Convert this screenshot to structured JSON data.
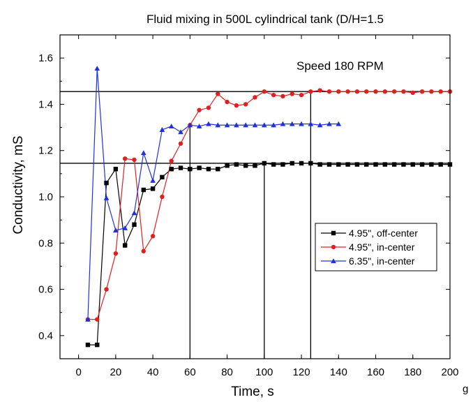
{
  "chart_data": {
    "type": "line",
    "title": "Fluid mixing in 500L cylindrical tank (D/H=1.5",
    "xlabel": "Time, s",
    "ylabel": "Conductivity, mS",
    "xlim": [
      -10,
      200
    ],
    "ylim": [
      0.3,
      1.7
    ],
    "x_ticks": [
      0,
      20,
      40,
      60,
      80,
      100,
      120,
      140,
      160,
      180,
      200
    ],
    "y_ticks": [
      0.4,
      0.6,
      0.8,
      1.0,
      1.2,
      1.4,
      1.6
    ],
    "x_tick_labels": [
      "0",
      "20",
      "40",
      "60",
      "80",
      "100",
      "120",
      "140",
      "160",
      "180",
      "200"
    ],
    "y_tick_labels": [
      "0.4",
      "0.6",
      "0.8",
      "1.0",
      "1.2",
      "1.4",
      "1.6"
    ],
    "grid": false,
    "legend_position": "center-right",
    "annotation": "Speed 180 RPM",
    "reference_lines": {
      "horizontal": [
        1.455,
        1.145
      ],
      "vertical": [
        {
          "x": 60,
          "from": 0.3,
          "to": 1.31
        },
        {
          "x": 100,
          "from": 0.3,
          "to": 1.145
        },
        {
          "x": 125,
          "from": 0.3,
          "to": 1.455
        }
      ]
    },
    "series": [
      {
        "name": "4.95\", off-center",
        "color": "#000000",
        "marker": "square",
        "x": [
          5,
          10,
          15,
          20,
          25,
          30,
          35,
          40,
          45,
          50,
          55,
          60,
          65,
          70,
          75,
          80,
          85,
          90,
          95,
          100,
          105,
          110,
          115,
          120,
          125,
          130,
          135,
          140,
          145,
          150,
          155,
          160,
          165,
          170,
          175,
          180,
          185,
          190,
          195,
          200
        ],
        "values": [
          0.36,
          0.36,
          1.06,
          1.12,
          0.79,
          0.88,
          1.03,
          1.035,
          1.085,
          1.12,
          1.125,
          1.12,
          1.125,
          1.12,
          1.12,
          1.135,
          1.14,
          1.135,
          1.135,
          1.145,
          1.14,
          1.14,
          1.145,
          1.145,
          1.145,
          1.14,
          1.14,
          1.14,
          1.14,
          1.14,
          1.14,
          1.14,
          1.14,
          1.14,
          1.14,
          1.14,
          1.14,
          1.14,
          1.14,
          1.14
        ]
      },
      {
        "name": "4.95\", in-center",
        "color": "#e02020",
        "marker": "circle",
        "x": [
          5,
          10,
          15,
          20,
          25,
          30,
          35,
          40,
          45,
          50,
          55,
          60,
          65,
          70,
          75,
          80,
          85,
          90,
          95,
          100,
          105,
          110,
          115,
          120,
          125,
          130,
          135,
          140,
          145,
          150,
          155,
          160,
          165,
          170,
          175,
          180,
          185,
          190,
          195,
          200
        ],
        "values": [
          0.47,
          0.47,
          0.6,
          0.755,
          1.165,
          1.16,
          0.765,
          0.83,
          1.0,
          1.155,
          1.23,
          1.31,
          1.375,
          1.385,
          1.445,
          1.41,
          1.395,
          1.4,
          1.43,
          1.455,
          1.44,
          1.435,
          1.445,
          1.44,
          1.455,
          1.46,
          1.455,
          1.455,
          1.455,
          1.455,
          1.455,
          1.455,
          1.455,
          1.455,
          1.455,
          1.45,
          1.455,
          1.455,
          1.455,
          1.455
        ]
      },
      {
        "name": "6.35\", in-center",
        "color": "#2030e0",
        "marker": "triangle",
        "x": [
          5,
          10,
          15,
          20,
          25,
          30,
          35,
          40,
          45,
          50,
          55,
          60,
          65,
          70,
          75,
          80,
          85,
          90,
          95,
          100,
          105,
          110,
          115,
          120,
          125,
          130,
          135,
          140
        ],
        "values": [
          0.47,
          1.555,
          0.995,
          0.855,
          0.865,
          0.93,
          1.19,
          1.07,
          1.29,
          1.305,
          1.28,
          1.31,
          1.305,
          1.315,
          1.31,
          1.31,
          1.31,
          1.31,
          1.31,
          1.31,
          1.31,
          1.315,
          1.315,
          1.315,
          1.315,
          1.31,
          1.315,
          1.315
        ]
      }
    ]
  },
  "stray_text": "g"
}
